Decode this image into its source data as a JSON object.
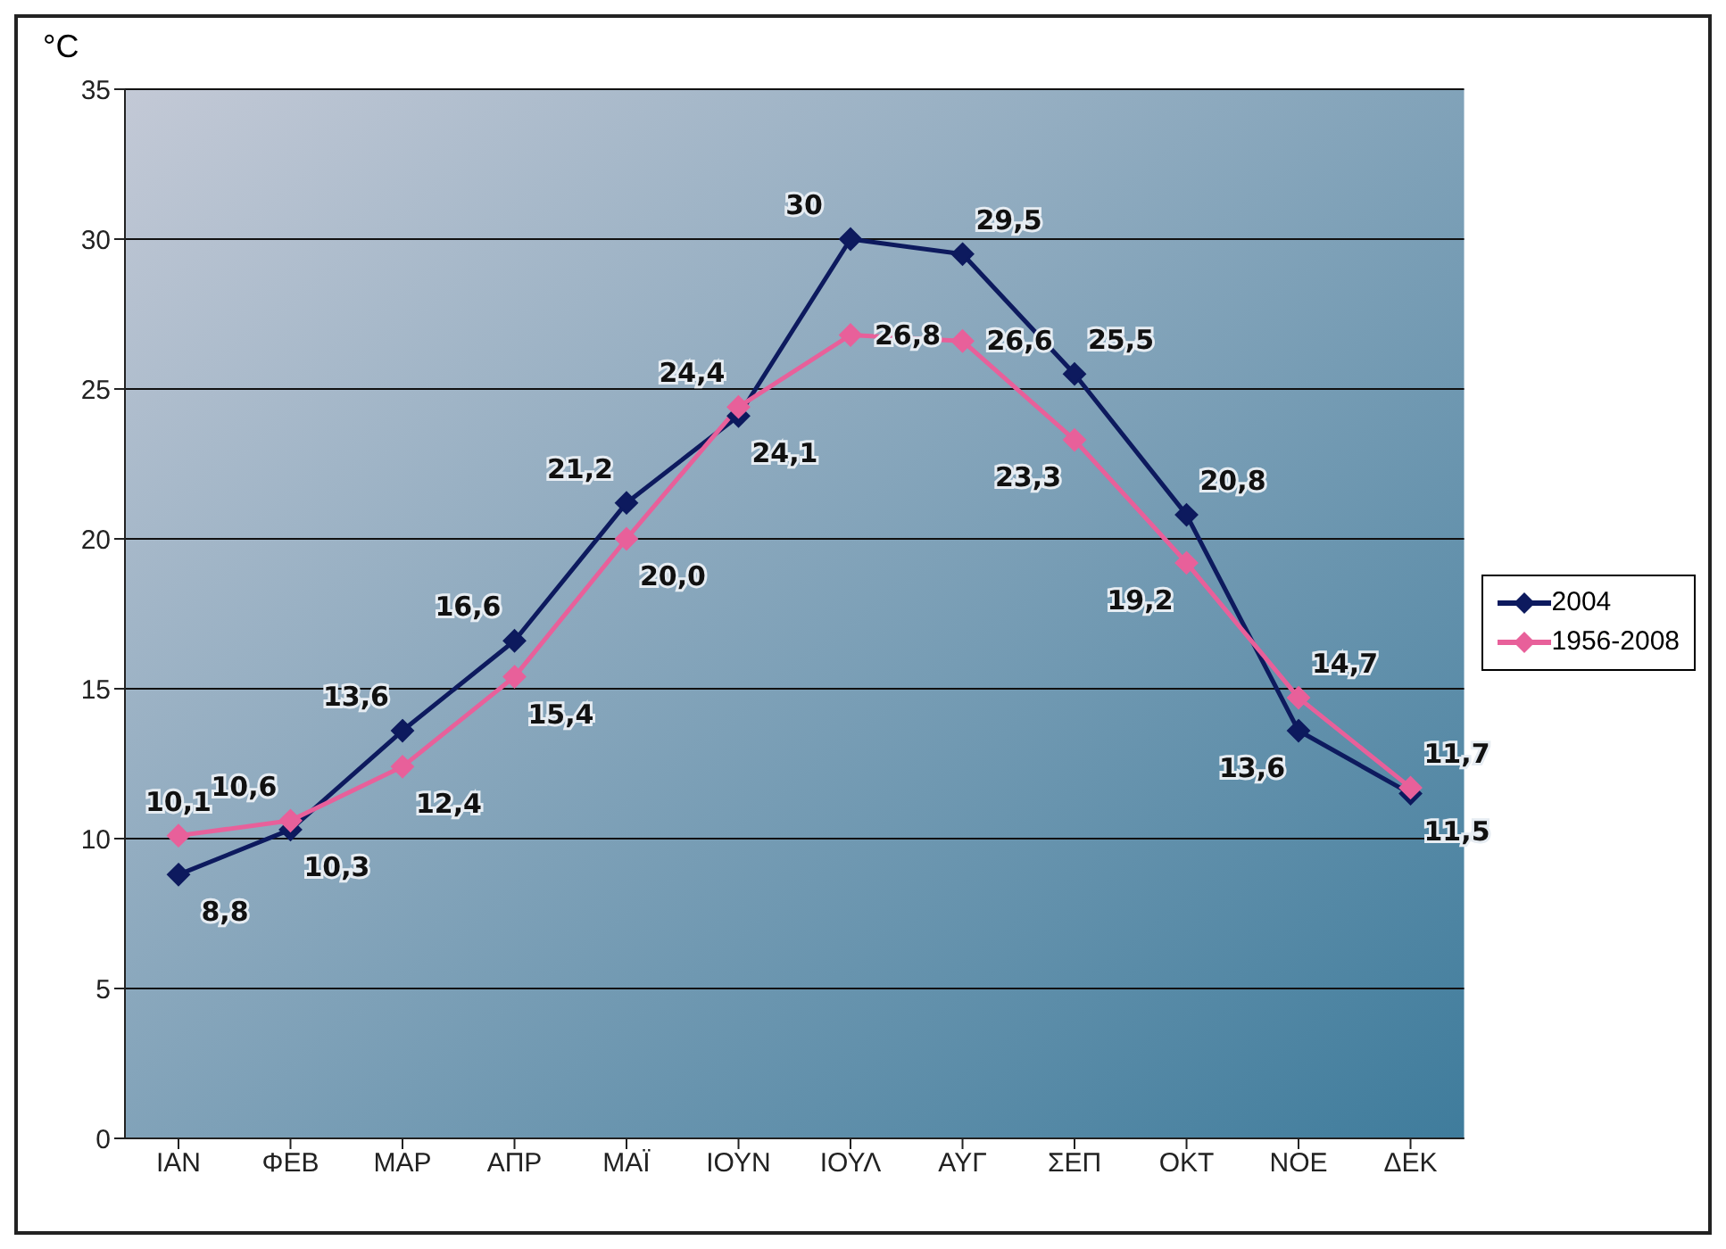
{
  "chart_data": {
    "type": "line",
    "ylabel": "°C",
    "categories": [
      "ΙΑΝ",
      "ΦΕΒ",
      "ΜΑΡ",
      "ΑΠΡ",
      "ΜΑΪ",
      "ΙΟΥΝ",
      "ΙΟΥΛ",
      "ΑΥΓ",
      "ΣΕΠ",
      "ΟΚΤ",
      "ΝΟΕ",
      "ΔΕΚ"
    ],
    "series": [
      {
        "name": "2004",
        "color": "#0d1a5e",
        "values": [
          8.8,
          10.3,
          13.6,
          16.6,
          21.2,
          24.1,
          30,
          29.5,
          25.5,
          20.8,
          13.6,
          11.5
        ],
        "value_labels": [
          "8,8",
          "10,3",
          "13,6",
          "16,6",
          "21,2",
          "24,1",
          "30",
          "29,5",
          "25,5",
          "20,8",
          "13,6",
          "11,5"
        ]
      },
      {
        "name": "1956-2008",
        "color": "#e8609a",
        "values": [
          10.1,
          10.6,
          12.4,
          15.4,
          20.0,
          24.4,
          26.8,
          26.6,
          23.3,
          19.2,
          14.7,
          11.7
        ],
        "value_labels": [
          "10,1",
          "10,6",
          "12,4",
          "15,4",
          "20,0",
          "24,4",
          "26,8",
          "26,6",
          "23,3",
          "19,2",
          "14,7",
          "11,7"
        ]
      }
    ],
    "ylim": [
      0,
      35
    ],
    "yticks": [
      0,
      5,
      10,
      15,
      20,
      25,
      30,
      35
    ],
    "grid": "y",
    "legend": "right",
    "marker": "diamond",
    "line_style": "solid"
  }
}
